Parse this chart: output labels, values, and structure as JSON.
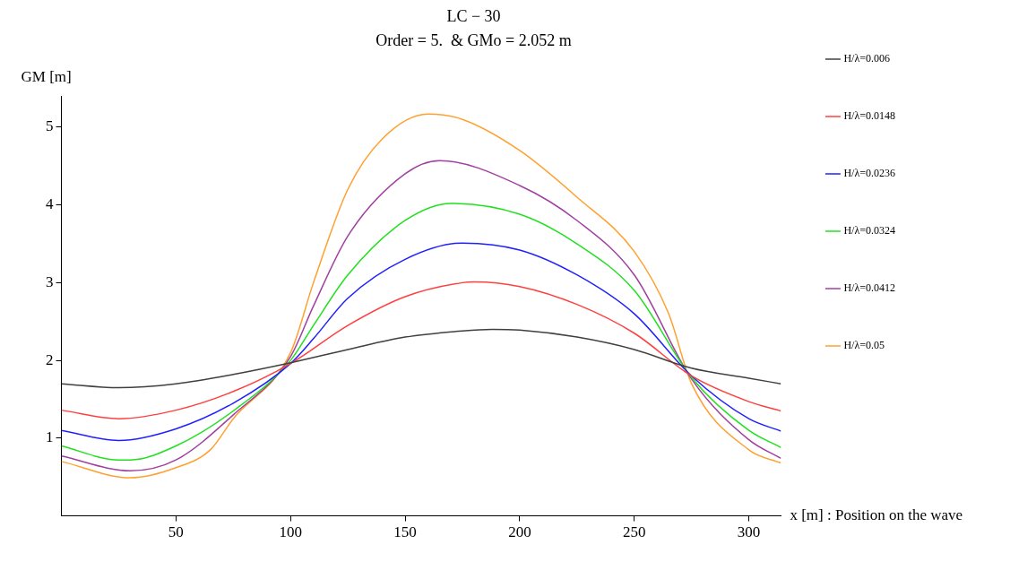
{
  "chart_data": {
    "type": "line",
    "title": "LC − 30",
    "subtitle": "Order = 5.  & GMo = 2.052 m",
    "xlabel": "x [m] : Position on the wave",
    "ylabel": "GM [m]",
    "xlim": [
      0,
      314
    ],
    "xticks": [
      50,
      100,
      150,
      200,
      250,
      300
    ],
    "ylim": [
      0,
      5.4
    ],
    "yticks": [
      1,
      2,
      3,
      4,
      5
    ],
    "grid": false,
    "legend": "right",
    "marker": "none",
    "line_style": "solid",
    "series": [
      {
        "name": "H/λ=0.006",
        "color": "#404040",
        "x": [
          0,
          25,
          50,
          75,
          100,
          125,
          150,
          175,
          188,
          200,
          225,
          250,
          275,
          300,
          314
        ],
        "values": [
          1.7,
          1.65,
          1.7,
          1.82,
          1.97,
          2.14,
          2.3,
          2.38,
          2.4,
          2.39,
          2.3,
          2.14,
          1.9,
          1.77,
          1.7
        ]
      },
      {
        "name": "H/λ=0.0148",
        "color": "#ff4040",
        "x": [
          0,
          25,
          50,
          75,
          100,
          125,
          150,
          175,
          180,
          200,
          225,
          250,
          275,
          300,
          314
        ],
        "values": [
          1.36,
          1.25,
          1.36,
          1.6,
          1.96,
          2.45,
          2.82,
          3.0,
          3.01,
          2.95,
          2.72,
          2.35,
          1.8,
          1.47,
          1.35
        ]
      },
      {
        "name": "H/λ=0.0236",
        "color": "#2020ff",
        "x": [
          0,
          25,
          50,
          75,
          100,
          110,
          125,
          150,
          175,
          200,
          225,
          250,
          275,
          300,
          314
        ],
        "values": [
          1.1,
          0.97,
          1.12,
          1.45,
          1.96,
          2.28,
          2.8,
          3.3,
          3.51,
          3.42,
          3.1,
          2.6,
          1.8,
          1.25,
          1.09
        ]
      },
      {
        "name": "H/λ=0.0324",
        "color": "#20e020",
        "x": [
          0,
          25,
          30,
          50,
          75,
          100,
          110,
          125,
          150,
          170,
          200,
          225,
          250,
          275,
          300,
          314
        ],
        "values": [
          0.9,
          0.72,
          0.72,
          0.9,
          1.35,
          2.0,
          2.45,
          3.1,
          3.8,
          4.02,
          3.88,
          3.5,
          2.9,
          1.78,
          1.1,
          0.88
        ]
      },
      {
        "name": "H/λ=0.0412",
        "color": "#a040a0",
        "x": [
          0,
          30,
          50,
          75,
          100,
          110,
          125,
          150,
          165,
          200,
          225,
          250,
          275,
          300,
          314
        ],
        "values": [
          0.77,
          0.58,
          0.72,
          1.3,
          2.05,
          2.7,
          3.6,
          4.4,
          4.57,
          4.25,
          3.8,
          3.1,
          1.76,
          0.98,
          0.74
        ]
      },
      {
        "name": "H/λ=0.05",
        "color": "#ffa030",
        "x": [
          0,
          30,
          50,
          65,
          75,
          100,
          110,
          125,
          140,
          160,
          175,
          200,
          225,
          250,
          265,
          275,
          300,
          314
        ],
        "values": [
          0.7,
          0.49,
          0.62,
          0.85,
          1.25,
          2.1,
          3.0,
          4.2,
          4.85,
          5.17,
          5.1,
          4.7,
          4.1,
          3.4,
          2.6,
          1.7,
          0.85,
          0.68
        ]
      }
    ]
  }
}
